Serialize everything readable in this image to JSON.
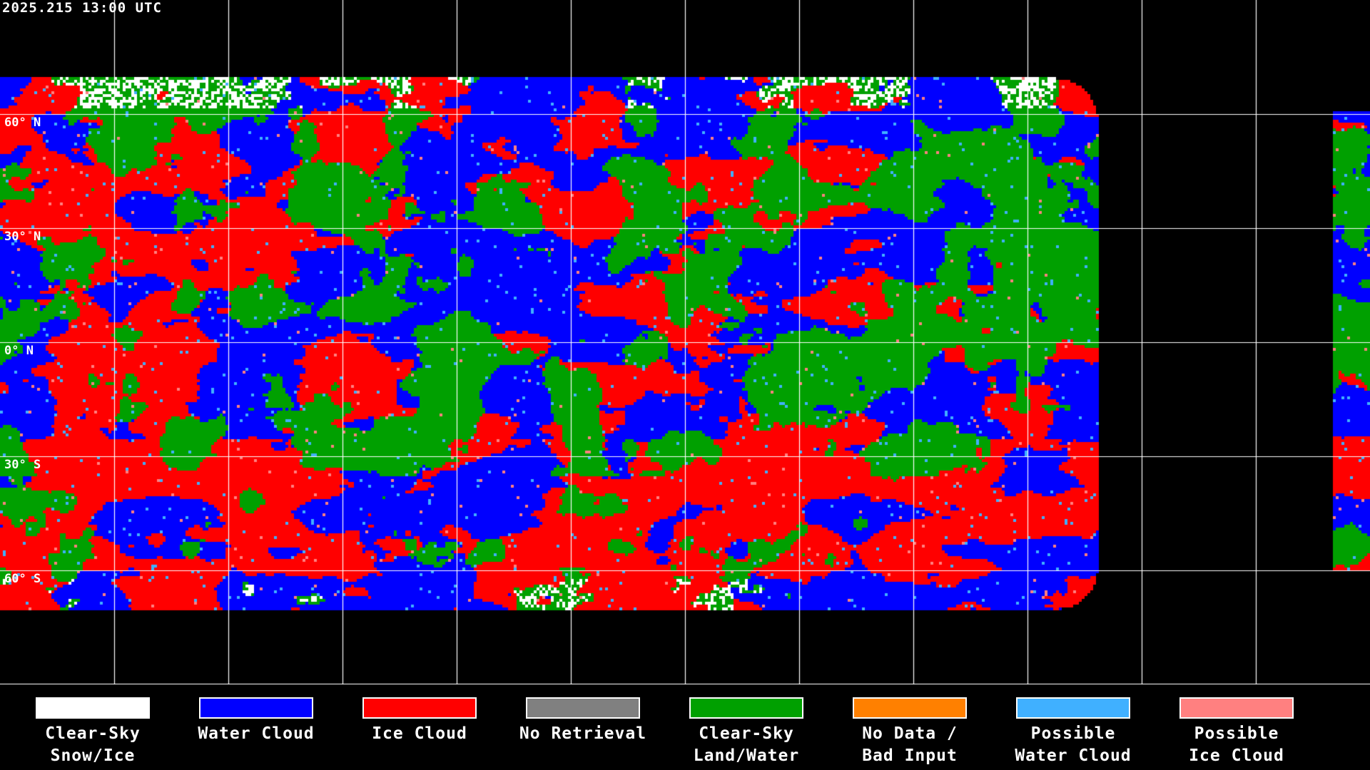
{
  "timestamp": "2025.215 13:00 UTC",
  "latitude_labels": [
    "60° N",
    "30° N",
    "0° N",
    "30° S",
    "60° S"
  ],
  "legend": [
    {
      "label1": "Clear-Sky",
      "label2": "Snow/Ice",
      "color": "#ffffff"
    },
    {
      "label1": "Water Cloud",
      "label2": "",
      "color": "#0000ff"
    },
    {
      "label1": "Ice Cloud",
      "label2": "",
      "color": "#ff0000"
    },
    {
      "label1": "No Retrieval",
      "label2": "",
      "color": "#808080"
    },
    {
      "label1": "Clear-Sky",
      "label2": "Land/Water",
      "color": "#00a000"
    },
    {
      "label1": "No Data /",
      "label2": "Bad Input",
      "color": "#ff8000"
    },
    {
      "label1": "Possible",
      "label2": "Water Cloud",
      "color": "#40b0ff"
    },
    {
      "label1": "Possible",
      "label2": "Ice Cloud",
      "color": "#ff8080"
    }
  ]
}
